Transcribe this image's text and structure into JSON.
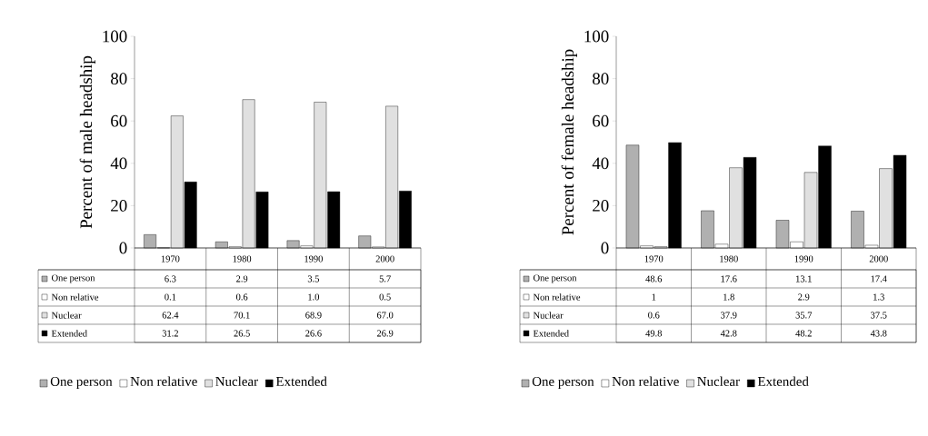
{
  "chart_data": [
    {
      "type": "bar",
      "ylabel": "Percent of male headship",
      "categories": [
        "1970",
        "1980",
        "1990",
        "2000"
      ],
      "ylim": [
        0,
        100
      ],
      "yticks": [
        0,
        20,
        40,
        60,
        80,
        100
      ],
      "legend": "bottom",
      "series": [
        {
          "name": "One person",
          "color": "#b0b0b0",
          "values": [
            6.3,
            2.9,
            3.5,
            5.7
          ],
          "value_labels": [
            "6.3",
            "2.9",
            "3.5",
            "5.7"
          ]
        },
        {
          "name": "Non relative",
          "color": "#ffffff",
          "values": [
            0.1,
            0.6,
            1.0,
            0.5
          ],
          "value_labels": [
            "0.1",
            "0.6",
            "1.0",
            "0.5"
          ]
        },
        {
          "name": "Nuclear",
          "color": "#e0e0e0",
          "values": [
            62.4,
            70.1,
            68.9,
            67.0
          ],
          "value_labels": [
            "62.4",
            "70.1",
            "68.9",
            "67.0"
          ]
        },
        {
          "name": "Extended",
          "color": "#000000",
          "values": [
            31.2,
            26.5,
            26.6,
            26.9
          ],
          "value_labels": [
            "31.2",
            "26.5",
            "26.6",
            "26.9"
          ]
        }
      ]
    },
    {
      "type": "bar",
      "ylabel": "Percent of female headship",
      "categories": [
        "1970",
        "1980",
        "1990",
        "2000"
      ],
      "ylim": [
        0,
        100
      ],
      "yticks": [
        0,
        20,
        40,
        60,
        80,
        100
      ],
      "legend": "bottom",
      "series": [
        {
          "name": "One person",
          "color": "#b0b0b0",
          "values": [
            48.6,
            17.6,
            13.1,
            17.4
          ],
          "value_labels": [
            "48.6",
            "17.6",
            "13.1",
            "17.4"
          ]
        },
        {
          "name": "Non relative",
          "color": "#ffffff",
          "values": [
            1,
            1.8,
            2.9,
            1.3
          ],
          "value_labels": [
            "1",
            "1.8",
            "2.9",
            "1.3"
          ]
        },
        {
          "name": "Nuclear",
          "color": "#e0e0e0",
          "values": [
            0.6,
            37.9,
            35.7,
            37.5
          ],
          "value_labels": [
            "0.6",
            "37.9",
            "35.7",
            "37.5"
          ]
        },
        {
          "name": "Extended",
          "color": "#000000",
          "values": [
            49.8,
            42.8,
            48.2,
            43.8
          ],
          "value_labels": [
            "49.8",
            "42.8",
            "48.2",
            "43.8"
          ]
        }
      ]
    }
  ]
}
